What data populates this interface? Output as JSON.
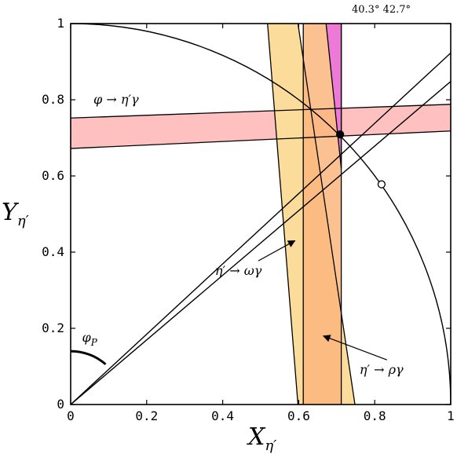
{
  "chart_data": {
    "type": "scatter",
    "xlabel": {
      "main": "X",
      "sub": "η′"
    },
    "ylabel": {
      "main": "Y",
      "sub": "η′"
    },
    "xlim": [
      0,
      1
    ],
    "ylim": [
      0,
      1
    ],
    "x_ticks": [
      0,
      0.2,
      0.4,
      0.6,
      0.8,
      1
    ],
    "x_tick_labels": [
      "0",
      "0.2",
      "0.4",
      "0.6",
      "0.8",
      "1"
    ],
    "y_ticks": [
      0,
      0.2,
      0.4,
      0.6,
      0.8,
      1
    ],
    "y_tick_labels": [
      "0",
      "0.2",
      "0.4",
      "0.6",
      "0.8",
      "1"
    ],
    "grid": false,
    "top_annotation": "40.3° 42.7°",
    "circle": {
      "center": [
        0,
        0
      ],
      "radius": 1
    },
    "angle_lines": [
      {
        "angle_deg": 40.3
      },
      {
        "angle_deg": 42.7
      }
    ],
    "bands": [
      {
        "label": "φ → η′γ",
        "color": "#ffc0c0",
        "edges": [
          {
            "x": [
              0,
              1
            ],
            "y": [
              0.672,
              0.718
            ]
          },
          {
            "x": [
              0,
              1
            ],
            "y": [
              0.752,
              0.788
            ]
          }
        ]
      },
      {
        "label": "η′ → ωγ",
        "color": "#fcdc9a",
        "edges": [
          {
            "x": [
              0.598,
              0.518
            ],
            "y": [
              0,
              1
            ]
          },
          {
            "x": [
              0.748,
              0.598
            ],
            "y": [
              0,
              1
            ]
          }
        ]
      },
      {
        "label": "η′ → ρ γ",
        "color": "#fbb67c",
        "edges": [
          {
            "x": [
              0.612,
              0.612
            ],
            "y": [
              0,
              1
            ]
          },
          {
            "x": [
              0.712,
              0.712
            ],
            "y": [
              0,
              1
            ]
          }
        ]
      },
      {
        "label": "",
        "color": "#ee7ad8",
        "edges": [
          {
            "x": [
              0.712,
              0.712
            ],
            "y": [
              0.62,
              1
            ]
          },
          {
            "x": [
              0.712,
              0.672
            ],
            "y": [
              0.62,
              1
            ]
          }
        ]
      }
    ],
    "points": [
      {
        "x": 0.709,
        "y": 0.709,
        "style": "filled"
      },
      {
        "x": 0.818,
        "y": 0.578,
        "style": "open"
      }
    ],
    "annotations": [
      {
        "text": "φ → η′γ",
        "x": 0.06,
        "y": 0.79
      },
      {
        "text": "η′ → ωγ",
        "x": 0.38,
        "y": 0.34,
        "arrow_to": [
          0.59,
          0.43
        ]
      },
      {
        "text": "η′ → ργ",
        "x": 0.76,
        "y": 0.08,
        "arrow_to": [
          0.665,
          0.18
        ]
      },
      {
        "text": "φP",
        "x": 0.03,
        "y": 0.165
      }
    ]
  }
}
